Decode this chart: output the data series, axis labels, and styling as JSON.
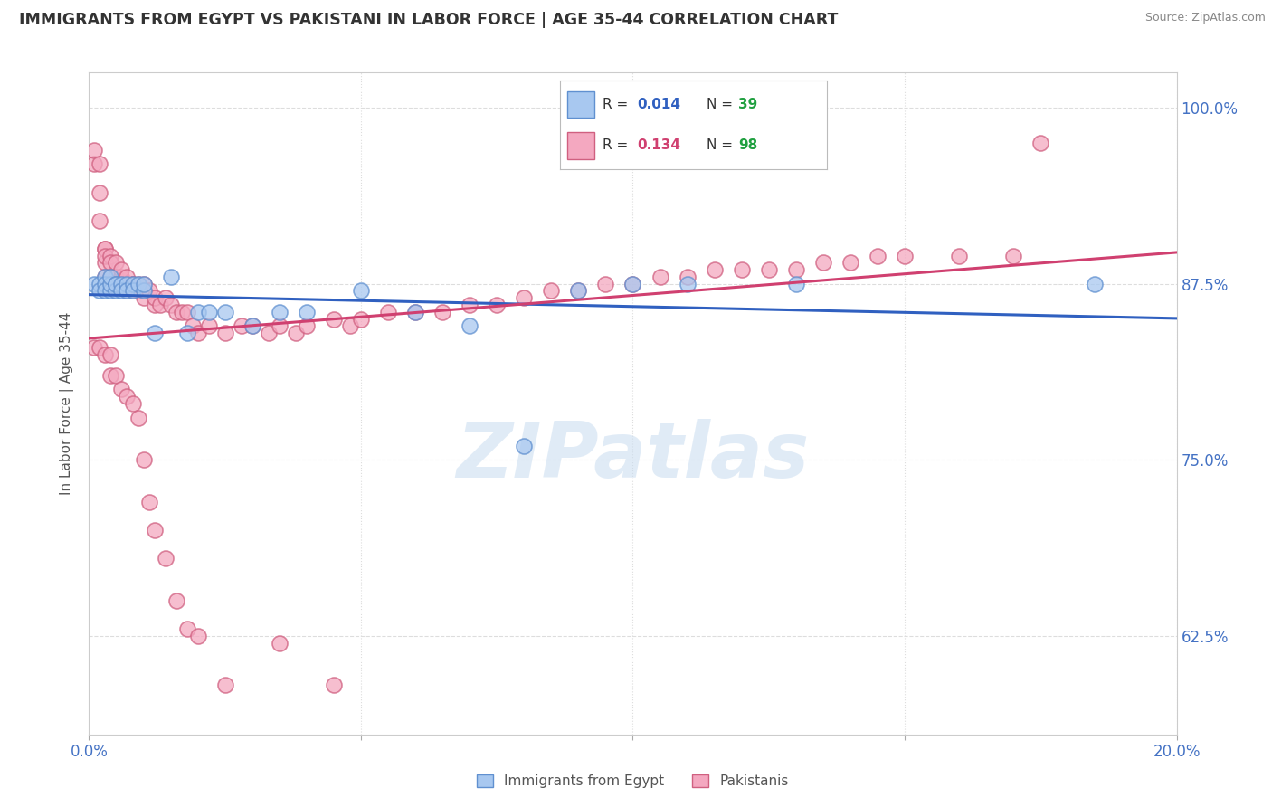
{
  "title": "IMMIGRANTS FROM EGYPT VS PAKISTANI IN LABOR FORCE | AGE 35-44 CORRELATION CHART",
  "source": "Source: ZipAtlas.com",
  "ylabel": "In Labor Force | Age 35-44",
  "xlim": [
    0.0,
    0.2
  ],
  "ylim": [
    0.555,
    1.025
  ],
  "ytick_positions": [
    0.625,
    0.75,
    0.875,
    1.0
  ],
  "ytick_labels": [
    "62.5%",
    "75.0%",
    "87.5%",
    "100.0%"
  ],
  "egypt_color": "#A8C8F0",
  "pakistan_color": "#F4A8C0",
  "egypt_edge_color": "#6090D0",
  "pakistan_edge_color": "#D06080",
  "egypt_line_color": "#3060C0",
  "pakistan_line_color": "#D04070",
  "legend_R_color": "#3060C0",
  "legend_N_color": "#20A040",
  "egypt_R": 0.014,
  "egypt_N": 39,
  "pakistan_R": 0.134,
  "pakistan_N": 98,
  "background_color": "#FFFFFF",
  "grid_color": "#DDDDDD",
  "egypt_scatter_x": [
    0.001,
    0.002,
    0.002,
    0.003,
    0.003,
    0.003,
    0.004,
    0.004,
    0.004,
    0.005,
    0.005,
    0.005,
    0.006,
    0.006,
    0.007,
    0.007,
    0.008,
    0.008,
    0.009,
    0.01,
    0.01,
    0.012,
    0.015,
    0.018,
    0.02,
    0.022,
    0.025,
    0.03,
    0.035,
    0.04,
    0.05,
    0.06,
    0.07,
    0.08,
    0.09,
    0.1,
    0.11,
    0.13,
    0.185
  ],
  "egypt_scatter_y": [
    0.875,
    0.875,
    0.87,
    0.88,
    0.875,
    0.87,
    0.87,
    0.875,
    0.88,
    0.875,
    0.87,
    0.875,
    0.875,
    0.87,
    0.875,
    0.87,
    0.875,
    0.87,
    0.875,
    0.87,
    0.875,
    0.84,
    0.88,
    0.84,
    0.855,
    0.855,
    0.855,
    0.845,
    0.855,
    0.855,
    0.87,
    0.855,
    0.845,
    0.76,
    0.87,
    0.875,
    0.875,
    0.875,
    0.875
  ],
  "pakistan_scatter_x": [
    0.001,
    0.001,
    0.002,
    0.002,
    0.002,
    0.003,
    0.003,
    0.003,
    0.003,
    0.003,
    0.004,
    0.004,
    0.004,
    0.004,
    0.005,
    0.005,
    0.005,
    0.005,
    0.006,
    0.006,
    0.006,
    0.006,
    0.007,
    0.007,
    0.007,
    0.008,
    0.008,
    0.008,
    0.009,
    0.009,
    0.01,
    0.01,
    0.01,
    0.011,
    0.012,
    0.012,
    0.013,
    0.014,
    0.015,
    0.016,
    0.017,
    0.018,
    0.019,
    0.02,
    0.022,
    0.025,
    0.028,
    0.03,
    0.033,
    0.035,
    0.038,
    0.04,
    0.045,
    0.048,
    0.05,
    0.055,
    0.06,
    0.065,
    0.07,
    0.075,
    0.08,
    0.085,
    0.09,
    0.095,
    0.1,
    0.105,
    0.11,
    0.115,
    0.12,
    0.125,
    0.13,
    0.135,
    0.14,
    0.145,
    0.15,
    0.16,
    0.17,
    0.175,
    0.001,
    0.002,
    0.003,
    0.004,
    0.004,
    0.005,
    0.006,
    0.007,
    0.008,
    0.009,
    0.01,
    0.011,
    0.012,
    0.014,
    0.016,
    0.018,
    0.02,
    0.025,
    0.035,
    0.045
  ],
  "pakistan_scatter_y": [
    0.96,
    0.97,
    0.96,
    0.94,
    0.92,
    0.89,
    0.9,
    0.9,
    0.895,
    0.88,
    0.895,
    0.89,
    0.88,
    0.875,
    0.89,
    0.88,
    0.875,
    0.875,
    0.88,
    0.885,
    0.875,
    0.875,
    0.875,
    0.88,
    0.87,
    0.875,
    0.87,
    0.875,
    0.87,
    0.875,
    0.875,
    0.87,
    0.865,
    0.87,
    0.86,
    0.865,
    0.86,
    0.865,
    0.86,
    0.855,
    0.855,
    0.855,
    0.845,
    0.84,
    0.845,
    0.84,
    0.845,
    0.845,
    0.84,
    0.845,
    0.84,
    0.845,
    0.85,
    0.845,
    0.85,
    0.855,
    0.855,
    0.855,
    0.86,
    0.86,
    0.865,
    0.87,
    0.87,
    0.875,
    0.875,
    0.88,
    0.88,
    0.885,
    0.885,
    0.885,
    0.885,
    0.89,
    0.89,
    0.895,
    0.895,
    0.895,
    0.895,
    0.975,
    0.83,
    0.83,
    0.825,
    0.825,
    0.81,
    0.81,
    0.8,
    0.795,
    0.79,
    0.78,
    0.75,
    0.72,
    0.7,
    0.68,
    0.65,
    0.63,
    0.625,
    0.59,
    0.62,
    0.59
  ]
}
